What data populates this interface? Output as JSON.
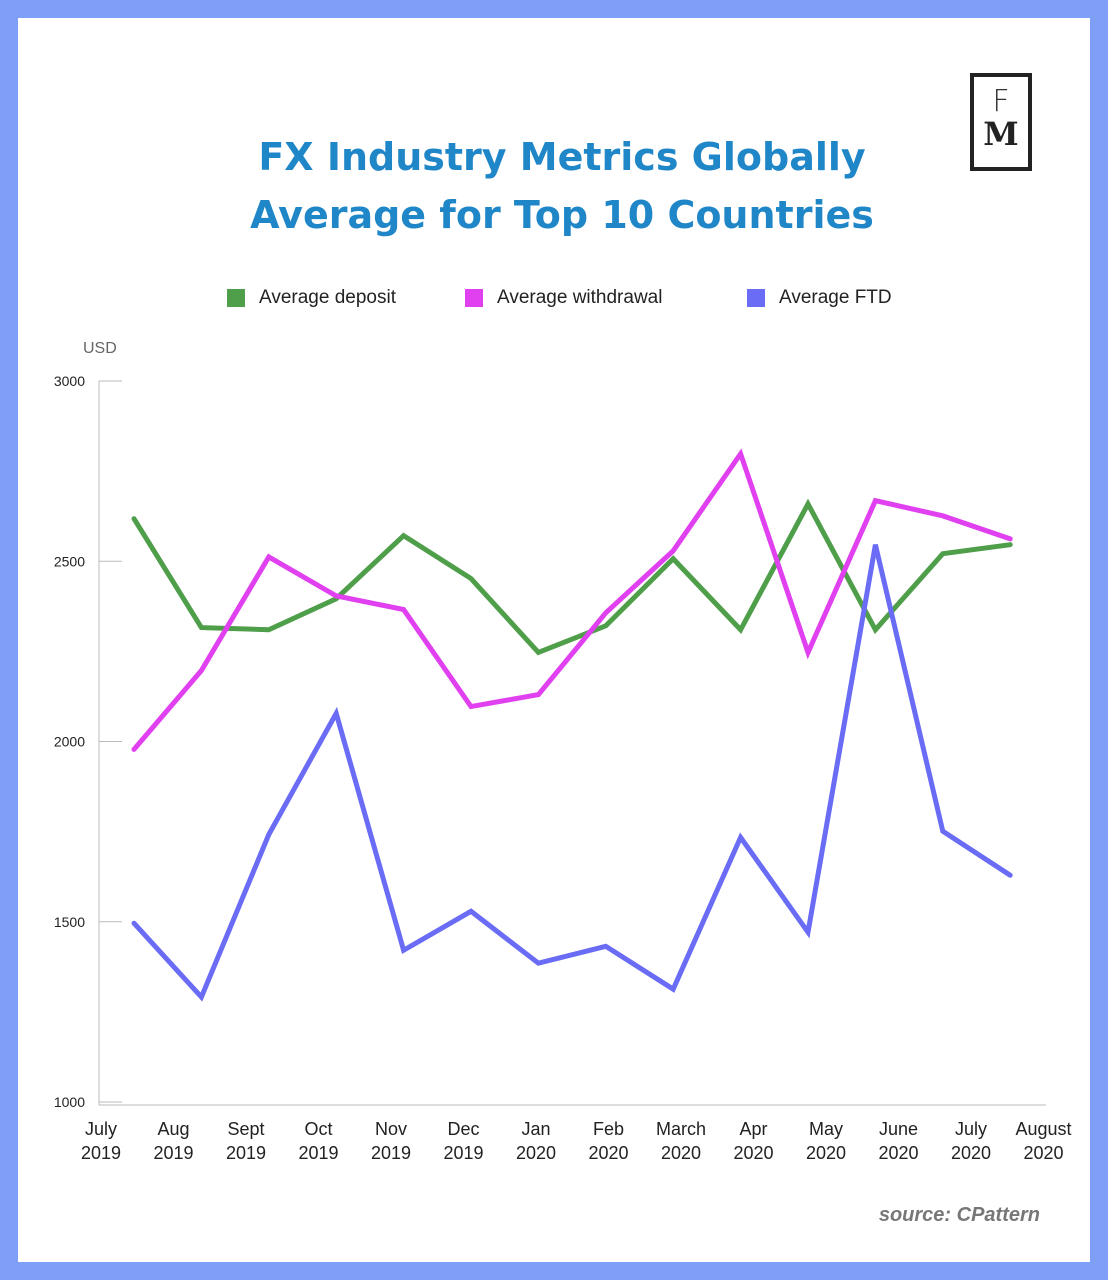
{
  "title_lines": [
    "FX Industry Metrics Globally",
    "Average for Top 10 Countries"
  ],
  "logo": {
    "line1": "F",
    "line2": "M"
  },
  "source": "source: CPattern",
  "chart_data": {
    "type": "line",
    "title": "FX Industry Metrics Globally Average for Top 10 Countries",
    "ylabel": "USD",
    "ylim": [
      1000,
      3000
    ],
    "yticks": [
      1000,
      1500,
      2000,
      2500,
      3000
    ],
    "grid": false,
    "legend_position": "top",
    "categories": [
      [
        "July",
        "2019"
      ],
      [
        "Aug",
        "2019"
      ],
      [
        "Sept",
        "2019"
      ],
      [
        "Oct",
        "2019"
      ],
      [
        "Nov",
        "2019"
      ],
      [
        "Dec",
        "2019"
      ],
      [
        "Jan",
        "2020"
      ],
      [
        "Feb",
        "2020"
      ],
      [
        "March",
        "2020"
      ],
      [
        "Apr",
        "2020"
      ],
      [
        "May",
        "2020"
      ],
      [
        "June",
        "2020"
      ],
      [
        "July",
        "2020"
      ],
      [
        "August",
        "2020"
      ]
    ],
    "series": [
      {
        "name": "Average deposit",
        "color": "#4f9e4a",
        "values": [
          2618,
          2316,
          2310,
          2396,
          2571,
          2452,
          2247,
          2321,
          2507,
          2310,
          2659,
          2310,
          2521,
          2546
        ]
      },
      {
        "name": "Average withdrawal",
        "color": "#e040f0",
        "values": [
          1978,
          2197,
          2512,
          2404,
          2366,
          2097,
          2130,
          2357,
          2529,
          2798,
          2247,
          2668,
          2626,
          2562
        ]
      },
      {
        "name": "Average FTD",
        "color": "#6a6cf5",
        "values": [
          1496,
          1291,
          1742,
          2078,
          1421,
          1529,
          1385,
          1432,
          1313,
          1734,
          1471,
          2546,
          1751,
          1629
        ]
      }
    ]
  }
}
